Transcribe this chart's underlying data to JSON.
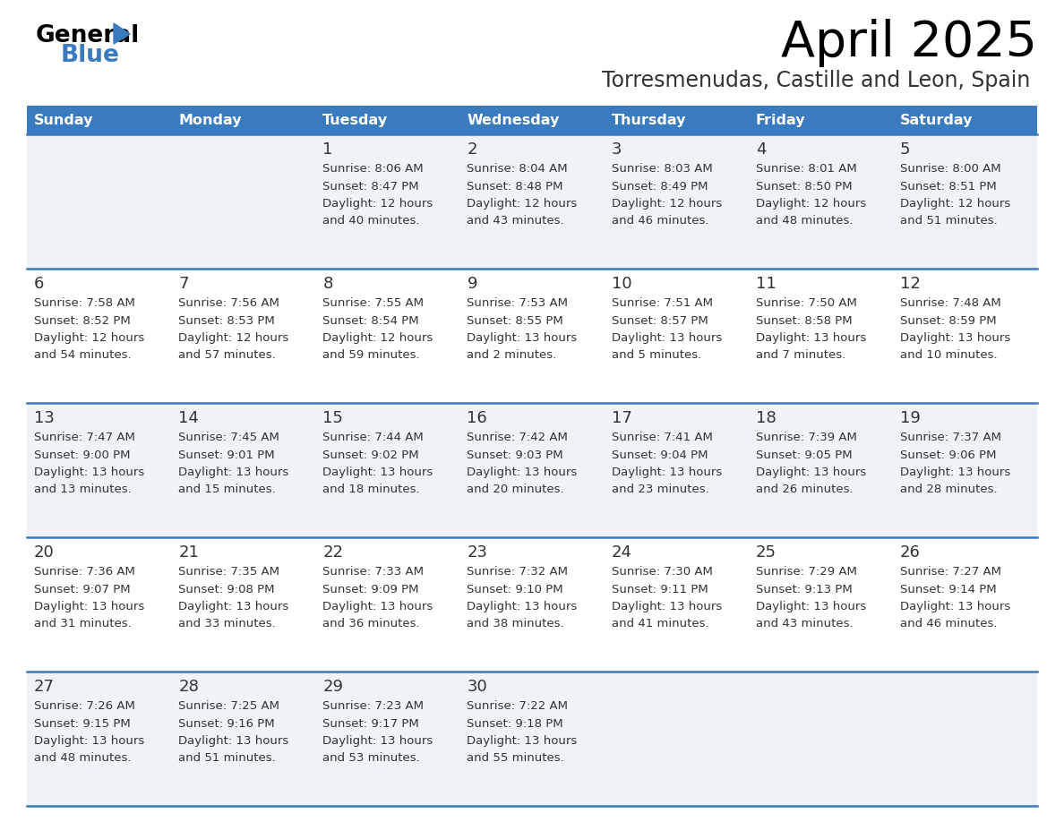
{
  "title": "April 2025",
  "subtitle": "Torresmenudas, Castille and Leon, Spain",
  "header_bg_color": "#3a7abf",
  "header_text_color": "#ffffff",
  "cell_bg_odd": "#eff3f8",
  "cell_bg_even": "#ffffff",
  "day_names": [
    "Sunday",
    "Monday",
    "Tuesday",
    "Wednesday",
    "Thursday",
    "Friday",
    "Saturday"
  ],
  "line_color": "#3a7abf",
  "text_color": "#333333",
  "days": [
    {
      "day": 1,
      "col": 2,
      "row": 0,
      "sunrise": "8:06 AM",
      "sunset": "8:47 PM",
      "daylight_h": "12 hours",
      "daylight_m": "40 minutes."
    },
    {
      "day": 2,
      "col": 3,
      "row": 0,
      "sunrise": "8:04 AM",
      "sunset": "8:48 PM",
      "daylight_h": "12 hours",
      "daylight_m": "43 minutes."
    },
    {
      "day": 3,
      "col": 4,
      "row": 0,
      "sunrise": "8:03 AM",
      "sunset": "8:49 PM",
      "daylight_h": "12 hours",
      "daylight_m": "46 minutes."
    },
    {
      "day": 4,
      "col": 5,
      "row": 0,
      "sunrise": "8:01 AM",
      "sunset": "8:50 PM",
      "daylight_h": "12 hours",
      "daylight_m": "48 minutes."
    },
    {
      "day": 5,
      "col": 6,
      "row": 0,
      "sunrise": "8:00 AM",
      "sunset": "8:51 PM",
      "daylight_h": "12 hours",
      "daylight_m": "51 minutes."
    },
    {
      "day": 6,
      "col": 0,
      "row": 1,
      "sunrise": "7:58 AM",
      "sunset": "8:52 PM",
      "daylight_h": "12 hours",
      "daylight_m": "54 minutes."
    },
    {
      "day": 7,
      "col": 1,
      "row": 1,
      "sunrise": "7:56 AM",
      "sunset": "8:53 PM",
      "daylight_h": "12 hours",
      "daylight_m": "57 minutes."
    },
    {
      "day": 8,
      "col": 2,
      "row": 1,
      "sunrise": "7:55 AM",
      "sunset": "8:54 PM",
      "daylight_h": "12 hours",
      "daylight_m": "59 minutes."
    },
    {
      "day": 9,
      "col": 3,
      "row": 1,
      "sunrise": "7:53 AM",
      "sunset": "8:55 PM",
      "daylight_h": "13 hours",
      "daylight_m": "2 minutes."
    },
    {
      "day": 10,
      "col": 4,
      "row": 1,
      "sunrise": "7:51 AM",
      "sunset": "8:57 PM",
      "daylight_h": "13 hours",
      "daylight_m": "5 minutes."
    },
    {
      "day": 11,
      "col": 5,
      "row": 1,
      "sunrise": "7:50 AM",
      "sunset": "8:58 PM",
      "daylight_h": "13 hours",
      "daylight_m": "7 minutes."
    },
    {
      "day": 12,
      "col": 6,
      "row": 1,
      "sunrise": "7:48 AM",
      "sunset": "8:59 PM",
      "daylight_h": "13 hours",
      "daylight_m": "10 minutes."
    },
    {
      "day": 13,
      "col": 0,
      "row": 2,
      "sunrise": "7:47 AM",
      "sunset": "9:00 PM",
      "daylight_h": "13 hours",
      "daylight_m": "13 minutes."
    },
    {
      "day": 14,
      "col": 1,
      "row": 2,
      "sunrise": "7:45 AM",
      "sunset": "9:01 PM",
      "daylight_h": "13 hours",
      "daylight_m": "15 minutes."
    },
    {
      "day": 15,
      "col": 2,
      "row": 2,
      "sunrise": "7:44 AM",
      "sunset": "9:02 PM",
      "daylight_h": "13 hours",
      "daylight_m": "18 minutes."
    },
    {
      "day": 16,
      "col": 3,
      "row": 2,
      "sunrise": "7:42 AM",
      "sunset": "9:03 PM",
      "daylight_h": "13 hours",
      "daylight_m": "20 minutes."
    },
    {
      "day": 17,
      "col": 4,
      "row": 2,
      "sunrise": "7:41 AM",
      "sunset": "9:04 PM",
      "daylight_h": "13 hours",
      "daylight_m": "23 minutes."
    },
    {
      "day": 18,
      "col": 5,
      "row": 2,
      "sunrise": "7:39 AM",
      "sunset": "9:05 PM",
      "daylight_h": "13 hours",
      "daylight_m": "26 minutes."
    },
    {
      "day": 19,
      "col": 6,
      "row": 2,
      "sunrise": "7:37 AM",
      "sunset": "9:06 PM",
      "daylight_h": "13 hours",
      "daylight_m": "28 minutes."
    },
    {
      "day": 20,
      "col": 0,
      "row": 3,
      "sunrise": "7:36 AM",
      "sunset": "9:07 PM",
      "daylight_h": "13 hours",
      "daylight_m": "31 minutes."
    },
    {
      "day": 21,
      "col": 1,
      "row": 3,
      "sunrise": "7:35 AM",
      "sunset": "9:08 PM",
      "daylight_h": "13 hours",
      "daylight_m": "33 minutes."
    },
    {
      "day": 22,
      "col": 2,
      "row": 3,
      "sunrise": "7:33 AM",
      "sunset": "9:09 PM",
      "daylight_h": "13 hours",
      "daylight_m": "36 minutes."
    },
    {
      "day": 23,
      "col": 3,
      "row": 3,
      "sunrise": "7:32 AM",
      "sunset": "9:10 PM",
      "daylight_h": "13 hours",
      "daylight_m": "38 minutes."
    },
    {
      "day": 24,
      "col": 4,
      "row": 3,
      "sunrise": "7:30 AM",
      "sunset": "9:11 PM",
      "daylight_h": "13 hours",
      "daylight_m": "41 minutes."
    },
    {
      "day": 25,
      "col": 5,
      "row": 3,
      "sunrise": "7:29 AM",
      "sunset": "9:13 PM",
      "daylight_h": "13 hours",
      "daylight_m": "43 minutes."
    },
    {
      "day": 26,
      "col": 6,
      "row": 3,
      "sunrise": "7:27 AM",
      "sunset": "9:14 PM",
      "daylight_h": "13 hours",
      "daylight_m": "46 minutes."
    },
    {
      "day": 27,
      "col": 0,
      "row": 4,
      "sunrise": "7:26 AM",
      "sunset": "9:15 PM",
      "daylight_h": "13 hours",
      "daylight_m": "48 minutes."
    },
    {
      "day": 28,
      "col": 1,
      "row": 4,
      "sunrise": "7:25 AM",
      "sunset": "9:16 PM",
      "daylight_h": "13 hours",
      "daylight_m": "51 minutes."
    },
    {
      "day": 29,
      "col": 2,
      "row": 4,
      "sunrise": "7:23 AM",
      "sunset": "9:17 PM",
      "daylight_h": "13 hours",
      "daylight_m": "53 minutes."
    },
    {
      "day": 30,
      "col": 3,
      "row": 4,
      "sunrise": "7:22 AM",
      "sunset": "9:18 PM",
      "daylight_h": "13 hours",
      "daylight_m": "55 minutes."
    }
  ]
}
